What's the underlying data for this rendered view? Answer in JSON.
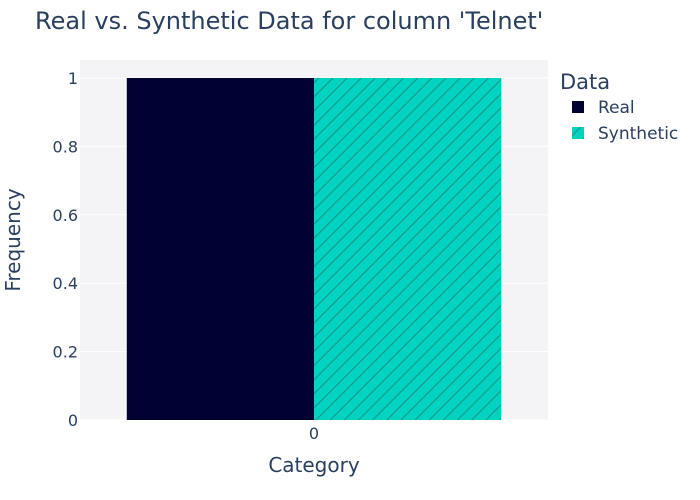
{
  "chart_data": {
    "type": "bar",
    "title": "Real vs. Synthetic Data for column 'Telnet'",
    "xlabel": "Category",
    "ylabel": "Frequency",
    "categories": [
      "0"
    ],
    "ylim": [
      0,
      1
    ],
    "yticks": [
      "0",
      "0.2",
      "0.4",
      "0.6",
      "0.8",
      "1"
    ],
    "grid": true,
    "legend_title": "Data",
    "legend_position": "top-right",
    "series": [
      {
        "name": "Real",
        "values": [
          1
        ],
        "color": "#000033",
        "pattern": "solid"
      },
      {
        "name": "Synthetic",
        "values": [
          1
        ],
        "color": "#00D4C0",
        "pattern": "diagonal-hatch"
      }
    ]
  }
}
